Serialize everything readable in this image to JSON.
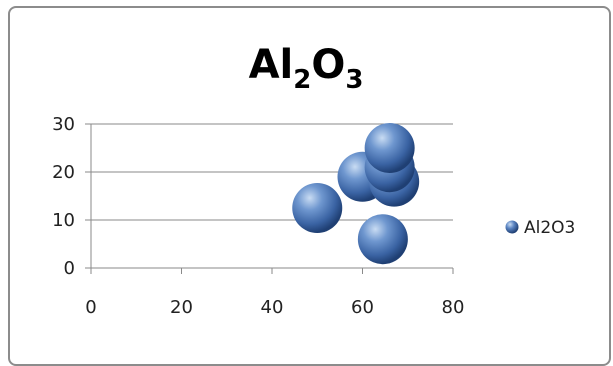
{
  "chart_data": {
    "type": "bubble",
    "title": "Al2O3",
    "title_parts": [
      "Al",
      "2",
      "O",
      "3"
    ],
    "xlim": [
      0,
      80
    ],
    "ylim": [
      0,
      30
    ],
    "x_ticks": [
      "0",
      "20",
      "40",
      "60",
      "80"
    ],
    "y_ticks": [
      "0",
      "10",
      "20",
      "30"
    ],
    "grid": "horizontal",
    "legend_position": "right",
    "series": [
      {
        "name": "Al2O3",
        "color": "#4f81bd",
        "points": [
          {
            "x": 50,
            "y": 12.5
          },
          {
            "x": 60,
            "y": 19
          },
          {
            "x": 67,
            "y": 18
          },
          {
            "x": 66,
            "y": 21
          },
          {
            "x": 66,
            "y": 25
          },
          {
            "x": 64.5,
            "y": 6
          }
        ]
      }
    ]
  }
}
